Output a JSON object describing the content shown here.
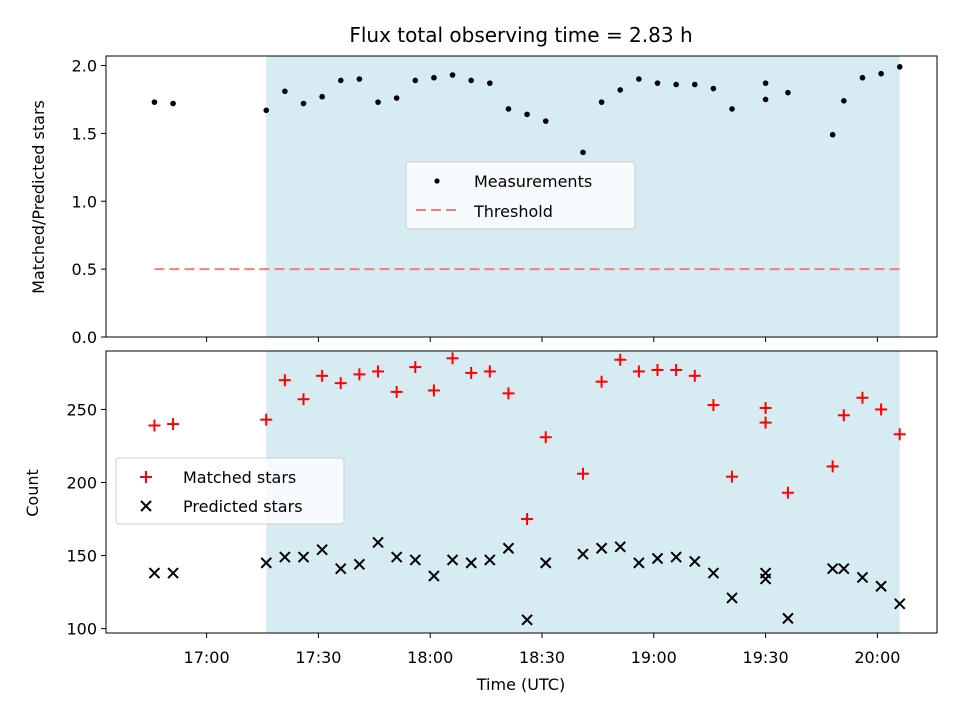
{
  "chart_data": [
    {
      "type": "scatter",
      "title": "Flux total observing time = 2.83 h",
      "ylabel": "Matched/Predicted stars",
      "xlabel": "",
      "ylim": [
        0.0,
        2.07
      ],
      "yticks": [
        "0.0",
        "0.5",
        "1.0",
        "1.5",
        "2.0"
      ],
      "ytick_values": [
        0.0,
        0.5,
        1.0,
        1.5,
        2.0
      ],
      "observing_window": [
        "17:16",
        "20:06"
      ],
      "legend": {
        "placement": "center",
        "measurements": "Measurements",
        "threshold": "Threshold"
      },
      "threshold": {
        "value": 0.5,
        "x_start": "16:46",
        "x_end": "20:06",
        "color": "#f08080"
      },
      "series": [
        {
          "name": "Measurements",
          "color": "#000000",
          "x": [
            "16:46",
            "16:51",
            "17:16",
            "17:21",
            "17:26",
            "17:31",
            "17:36",
            "17:41",
            "17:46",
            "17:51",
            "17:56",
            "18:01",
            "18:06",
            "18:11",
            "18:16",
            "18:21",
            "18:26",
            "18:31",
            "18:41",
            "18:46",
            "18:51",
            "18:56",
            "19:01",
            "19:06",
            "19:11",
            "19:16",
            "19:21",
            "19:30",
            "19:30",
            "19:36",
            "19:48",
            "19:51",
            "19:56",
            "20:01",
            "20:06"
          ],
          "values": [
            1.73,
            1.72,
            1.67,
            1.81,
            1.72,
            1.77,
            1.89,
            1.9,
            1.73,
            1.76,
            1.89,
            1.91,
            1.93,
            1.89,
            1.87,
            1.68,
            1.64,
            1.59,
            1.36,
            1.73,
            1.82,
            1.9,
            1.87,
            1.86,
            1.86,
            1.83,
            1.68,
            1.75,
            1.87,
            1.8,
            1.49,
            1.74,
            1.91,
            1.94,
            1.99
          ]
        }
      ]
    },
    {
      "type": "scatter",
      "title": "",
      "ylabel": "Count",
      "xlabel": "Time (UTC)",
      "ylim": [
        97,
        290
      ],
      "yticks": [
        "100",
        "150",
        "200",
        "250"
      ],
      "ytick_values": [
        100,
        150,
        200,
        250
      ],
      "xlim": [
        "16:33",
        "20:16"
      ],
      "xticks": [
        "17:00",
        "17:30",
        "18:00",
        "18:30",
        "19:00",
        "19:30",
        "20:00"
      ],
      "observing_window": [
        "17:16",
        "20:06"
      ],
      "legend": {
        "placement": "center-left",
        "matched": "Matched stars",
        "predicted": "Predicted stars"
      },
      "series": [
        {
          "name": "Matched stars",
          "marker": "plus",
          "color": "#ff0000",
          "x": [
            "16:46",
            "16:51",
            "17:16",
            "17:21",
            "17:26",
            "17:31",
            "17:36",
            "17:41",
            "17:46",
            "17:51",
            "17:56",
            "18:01",
            "18:06",
            "18:11",
            "18:16",
            "18:21",
            "18:26",
            "18:31",
            "18:41",
            "18:46",
            "18:51",
            "18:56",
            "19:01",
            "19:06",
            "19:11",
            "19:16",
            "19:21",
            "19:30",
            "19:30",
            "19:36",
            "19:48",
            "19:51",
            "19:56",
            "20:01",
            "20:06"
          ],
          "values": [
            239,
            240,
            243,
            270,
            257,
            273,
            268,
            274,
            276,
            262,
            279,
            263,
            285,
            275,
            276,
            261,
            175,
            231,
            206,
            269,
            284,
            276,
            277,
            277,
            273,
            253,
            204,
            241,
            251,
            193,
            211,
            246,
            258,
            250,
            233
          ]
        },
        {
          "name": "Predicted stars",
          "marker": "x",
          "color": "#000000",
          "x": [
            "16:46",
            "16:51",
            "17:16",
            "17:21",
            "17:26",
            "17:31",
            "17:36",
            "17:41",
            "17:46",
            "17:51",
            "17:56",
            "18:01",
            "18:06",
            "18:11",
            "18:16",
            "18:21",
            "18:26",
            "18:31",
            "18:41",
            "18:46",
            "18:51",
            "18:56",
            "19:01",
            "19:06",
            "19:11",
            "19:16",
            "19:21",
            "19:30",
            "19:30",
            "19:36",
            "19:48",
            "19:51",
            "19:56",
            "20:01",
            "20:06"
          ],
          "values": [
            138,
            138,
            145,
            149,
            149,
            154,
            141,
            144,
            159,
            149,
            147,
            136,
            147,
            145,
            147,
            155,
            106,
            145,
            151,
            155,
            156,
            145,
            148,
            149,
            146,
            138,
            121,
            138,
            134,
            107,
            141,
            141,
            135,
            129,
            117
          ]
        }
      ]
    }
  ]
}
